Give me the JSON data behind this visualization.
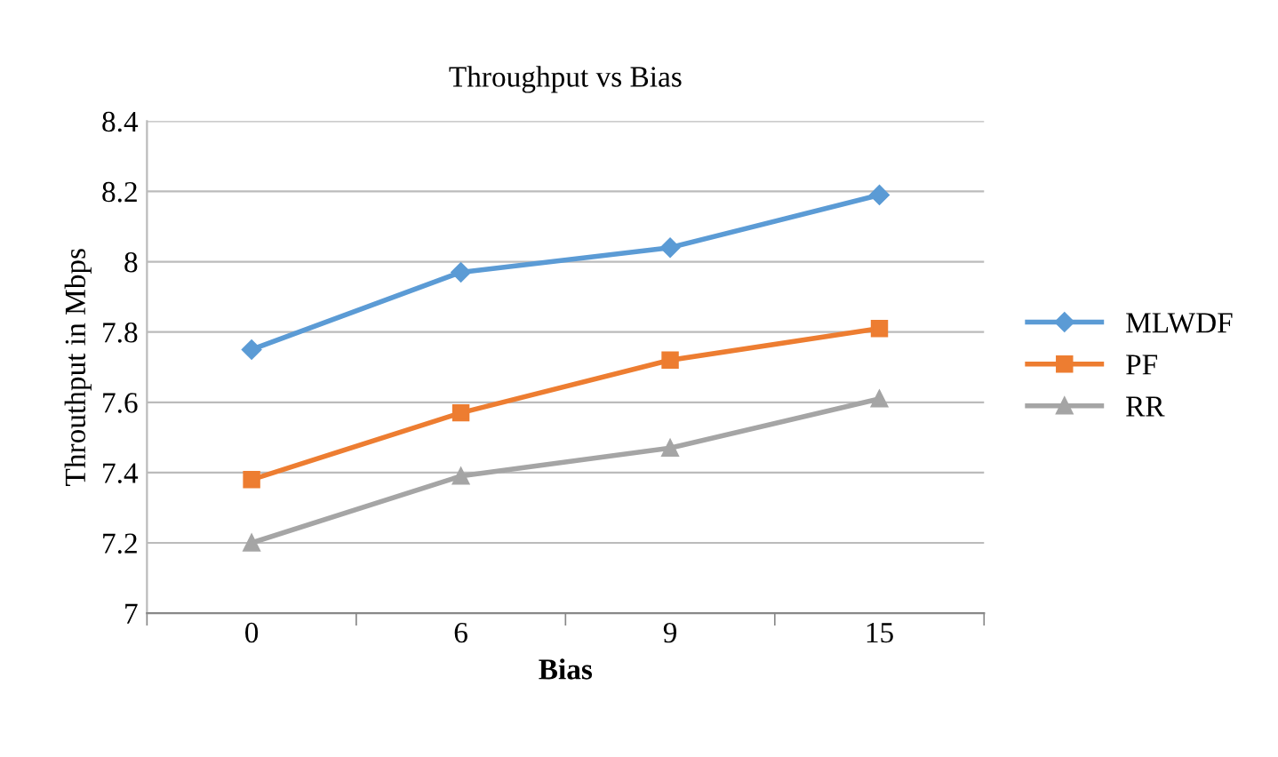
{
  "chart_data": {
    "type": "line",
    "title": "Throughput vs Bias",
    "xlabel": "Bias",
    "ylabel": "Throuthput in Mbps",
    "categories": [
      "0",
      "6",
      "9",
      "15"
    ],
    "series": [
      {
        "name": "MLWDF",
        "color": "#5b9bd5",
        "marker": "diamond",
        "values": [
          7.75,
          7.97,
          8.04,
          8.19
        ]
      },
      {
        "name": "PF",
        "color": "#ed7d31",
        "marker": "square",
        "values": [
          7.38,
          7.57,
          7.72,
          7.81
        ]
      },
      {
        "name": "RR",
        "color": "#a5a5a5",
        "marker": "triangle",
        "values": [
          7.2,
          7.39,
          7.47,
          7.61
        ]
      }
    ],
    "ylim": [
      7,
      8.4
    ],
    "yticks": [
      7,
      7.2,
      7.4,
      7.6,
      7.8,
      8,
      8.2,
      8.4
    ],
    "grid": "y",
    "legend": "right",
    "line_style": "solid"
  }
}
